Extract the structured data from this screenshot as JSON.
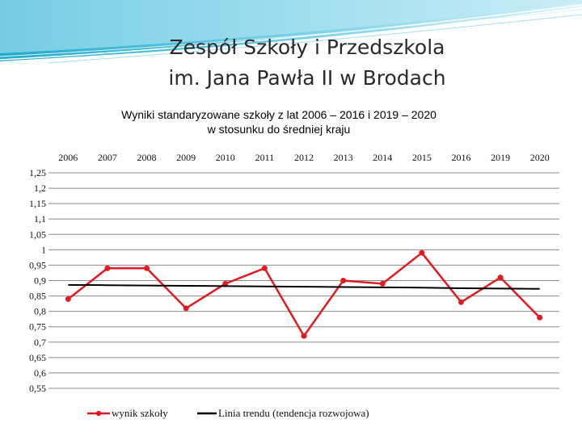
{
  "slide": {
    "title_line1": "Zespół Szkoły i Przedszkola",
    "title_line2": "im. Jana Pawła II w Brodach"
  },
  "colors": {
    "series": "#e11b22",
    "trend": "#000000",
    "grid": "#8c8c8c",
    "header_accent": "#29b8d6"
  },
  "chart_data": {
    "type": "line",
    "title": "Wyniki  standaryzowane szkoły z lat 2006 – 2016 i 2019 – 2020",
    "subtitle": "w stosunku do średniej kraju",
    "categories": [
      "2006",
      "2007",
      "2008",
      "2009",
      "2010",
      "2011",
      "2012",
      "2013",
      "2014",
      "2015",
      "2016",
      "2019",
      "2020"
    ],
    "series": [
      {
        "name": "wynik szkoły",
        "values": [
          0.84,
          0.94,
          0.94,
          0.81,
          0.89,
          0.94,
          0.72,
          0.9,
          0.89,
          0.99,
          0.83,
          0.91,
          0.78
        ],
        "marker": "circle"
      },
      {
        "name": "Linia trendu (tendencja rozwojowa)",
        "values": [
          0.886,
          0.885,
          0.884,
          0.883,
          0.882,
          0.881,
          0.88,
          0.879,
          0.878,
          0.877,
          0.875,
          0.874,
          0.873
        ],
        "marker": "none"
      }
    ],
    "y_ticks": [
      "1,25",
      "1,2",
      "1,15",
      "1,1",
      "1,05",
      "1",
      "0,95",
      "0,9",
      "0,85",
      "0,8",
      "0,75",
      "0,7",
      "0,65",
      "0,6",
      "0,55"
    ],
    "ylim": [
      0.55,
      1.25
    ],
    "x_axis_position": "top",
    "grid": true,
    "legend_position": "bottom"
  }
}
